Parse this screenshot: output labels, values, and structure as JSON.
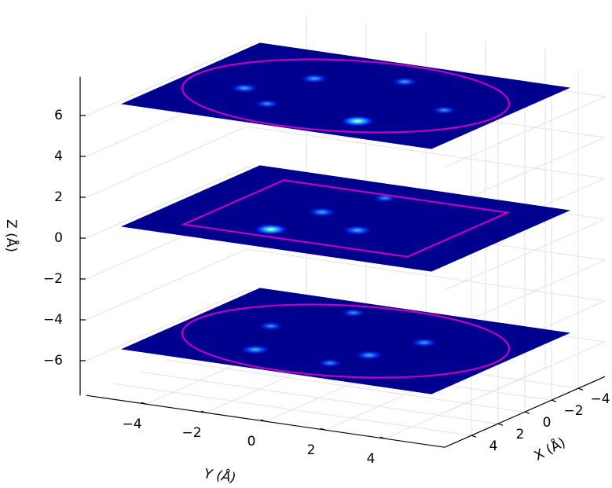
{
  "chart_data": {
    "type": "planes3d",
    "xlabel": "X (Å)",
    "ylabel": "Y (Å)",
    "zlabel": "Z (Å)",
    "xlim": [
      -6,
      6
    ],
    "ylim": [
      -6,
      6
    ],
    "zlim": [
      -7.7,
      7.9
    ],
    "xticks": [
      {
        "value": -4,
        "label": "−4"
      },
      {
        "value": -2,
        "label": "−2"
      },
      0,
      2,
      4
    ],
    "yticks": [
      {
        "value": -4,
        "label": "−4"
      },
      {
        "value": -2,
        "label": "−2"
      },
      0,
      2,
      4
    ],
    "zticks": [
      {
        "value": -6,
        "label": "−6"
      },
      {
        "value": -4,
        "label": "−4"
      },
      {
        "value": -2,
        "label": "−2"
      },
      0,
      2,
      4,
      6
    ],
    "grid": true,
    "plane_extent": [
      -5.2,
      5.2
    ],
    "plane_color": "#00008f",
    "outline_color": "#c000c0",
    "planes": [
      {
        "z": -5.5,
        "outline": "circle",
        "outline_size": 5,
        "spots": [
          [
            2.77,
            -1.79,
            0.8
          ],
          [
            1.37,
            1.4,
            0.7
          ],
          [
            -0.53,
            -2.74,
            0.5
          ],
          [
            -3.76,
            -1.42,
            0.5
          ],
          [
            -1.25,
            2.07,
            0.6
          ],
          [
            3.1,
            0.86,
            0.5
          ]
        ]
      },
      {
        "z": 0.5,
        "outline": "square",
        "outline_size": 3.75,
        "spots": [
          [
            -0.37,
            -0.96,
            0.7
          ],
          [
            2.78,
            -1.26,
            1
          ],
          [
            1.29,
            0.97,
            0.8
          ],
          [
            -3.33,
            -0.17,
            0.5
          ]
        ]
      },
      {
        "z": 6.5,
        "outline": "circle",
        "outline_size": 5,
        "spots": [
          [
            0.88,
            -3.0,
            0.7
          ],
          [
            -1.63,
            -1.78,
            0.7
          ],
          [
            -2.9,
            0.68,
            0.6
          ],
          [
            2.46,
            -1.53,
            0.5
          ],
          [
            3.0,
            1.74,
            1
          ],
          [
            0,
            3.3,
            0.5
          ]
        ]
      }
    ]
  }
}
